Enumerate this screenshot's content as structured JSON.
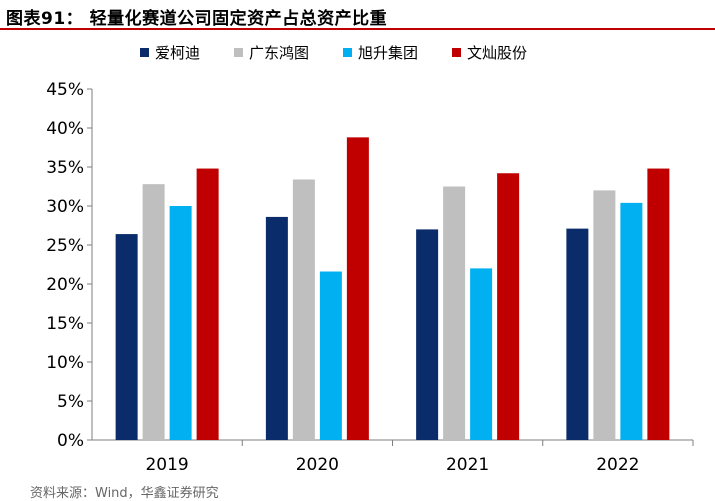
{
  "header": {
    "title": "图表91：  轻量化赛道公司固定资产占总资产比重"
  },
  "footer": {
    "source": "资料来源：Wind，华鑫证券研究"
  },
  "chart_data": {
    "type": "bar",
    "categories": [
      "2019",
      "2020",
      "2021",
      "2022"
    ],
    "series": [
      {
        "name": "爱柯迪",
        "color": "#0b2c6b",
        "values": [
          26.4,
          28.6,
          27.0,
          27.1
        ]
      },
      {
        "name": "广东鸿图",
        "color": "#bfbfbf",
        "values": [
          32.8,
          33.4,
          32.5,
          32.0
        ]
      },
      {
        "name": "旭升集团",
        "color": "#00b0f0",
        "values": [
          30.0,
          21.6,
          22.0,
          30.4
        ]
      },
      {
        "name": "文灿股份",
        "color": "#c00000",
        "values": [
          34.8,
          38.8,
          34.2,
          34.8
        ]
      }
    ],
    "ylim": [
      0,
      45
    ],
    "yticks": [
      "0%",
      "5%",
      "10%",
      "15%",
      "20%",
      "25%",
      "30%",
      "35%",
      "40%",
      "45%"
    ],
    "ytick_values": [
      0,
      5,
      10,
      15,
      20,
      25,
      30,
      35,
      40,
      45
    ],
    "title": "",
    "xlabel": "",
    "ylabel": "",
    "legend_position": "top",
    "grid": false
  }
}
